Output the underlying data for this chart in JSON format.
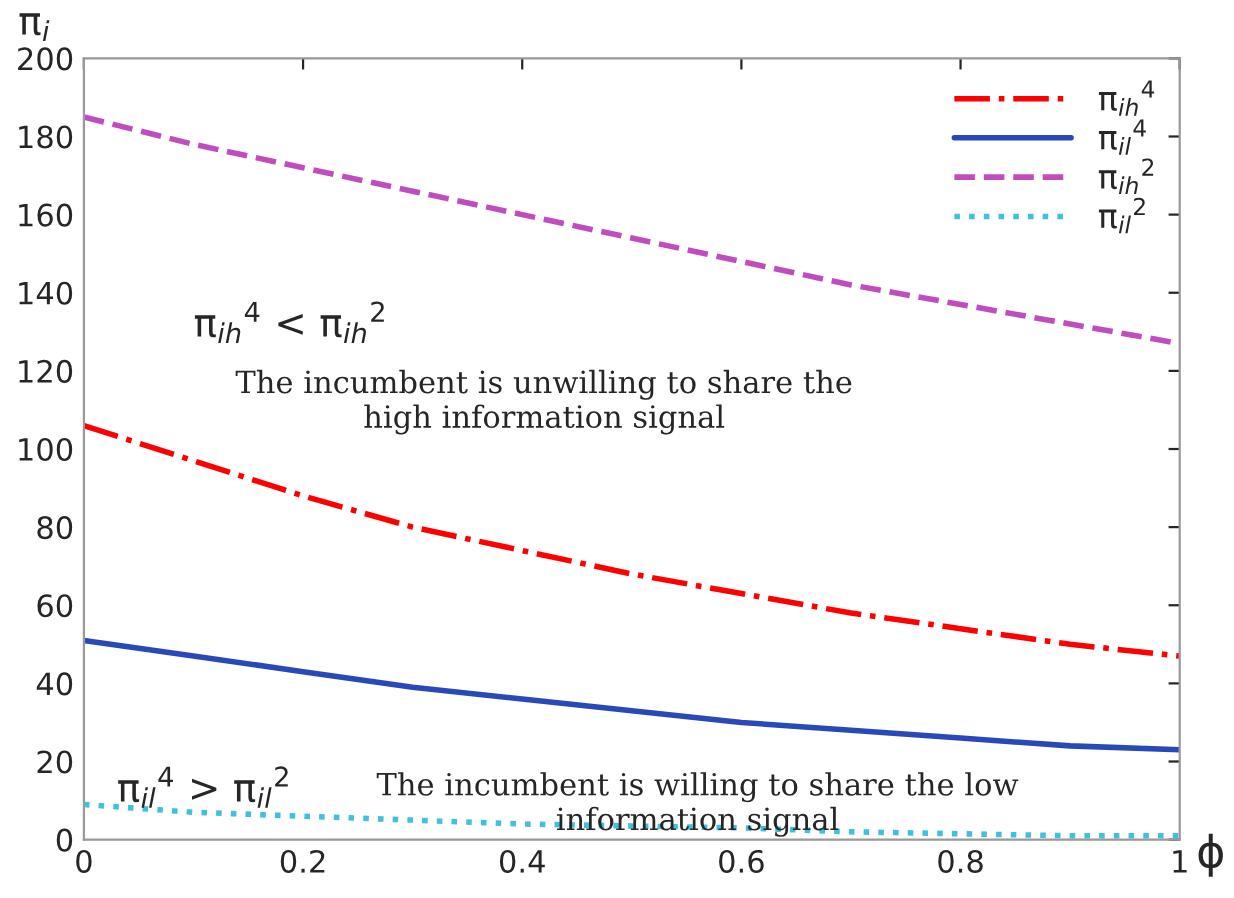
{
  "chart_data": {
    "type": "line",
    "xlabel": "ϕ",
    "ylabel": "π$_{i}$",
    "x": [
      0,
      0.1,
      0.2,
      0.3,
      0.4,
      0.5,
      0.6,
      0.7,
      0.8,
      0.9,
      1
    ],
    "series": [
      {
        "name": "π$_{ih}$$^{4}$",
        "color": "#ff0000",
        "line_style": "dashdot",
        "values": [
          106,
          97,
          88,
          80,
          74,
          68,
          63,
          58,
          54,
          50,
          47
        ]
      },
      {
        "name": "π$_{il}$$^{4}$",
        "color": "#2a49b8",
        "line_style": "solid",
        "values": [
          51,
          47,
          43,
          39,
          36,
          33,
          30,
          28,
          26,
          24,
          23
        ]
      },
      {
        "name": "π$_{ih}$$^{2}$",
        "color": "#c04cc0",
        "line_style": "dashed",
        "values": [
          185,
          178,
          172,
          166,
          160,
          154,
          148,
          142,
          137,
          132,
          127
        ]
      },
      {
        "name": "π$_{il}$$^{2}$",
        "color": "#3fc0dc",
        "line_style": "dotted",
        "values": [
          9,
          7,
          6,
          5,
          4,
          3.5,
          3,
          2,
          1.5,
          1,
          1
        ]
      }
    ],
    "xlim": [
      0,
      1
    ],
    "xticks": [
      0,
      0.2,
      0.4,
      0.6,
      0.8,
      1
    ],
    "ylim": [
      0,
      200
    ],
    "yticks": [
      0,
      20,
      40,
      60,
      80,
      100,
      120,
      140,
      160,
      180,
      200
    ],
    "grid": false,
    "legend": "top right",
    "annotations": [
      "π$_{ih}$$^{4}$ < π$_{ih}$$^{2}$",
      "The incumbent is unwilling to share the\nhigh information signal",
      "π$_{il}$$^{4}$ > π$_{il}$$^{2}$",
      "The incumbent is willing to share the low\ninformation signal"
    ]
  }
}
